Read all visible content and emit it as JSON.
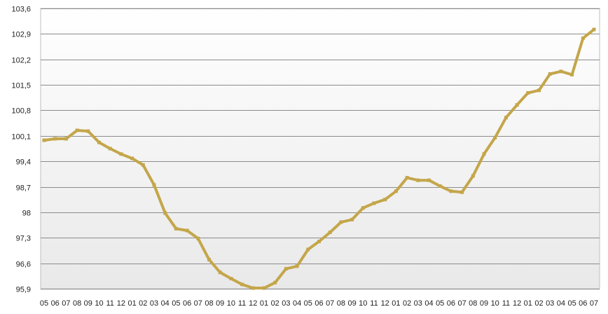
{
  "colors": {
    "line": "#C4A64A",
    "grid": "#8C8C8C",
    "plot_bg_top": "#FFFFFF",
    "plot_bg_bottom": "#E9E9E9",
    "frame": "#BFBFBF",
    "text": "#222222"
  },
  "chart_data": {
    "type": "line",
    "title": "",
    "xlabel": "",
    "ylabel": "",
    "grid": true,
    "legend": "none",
    "ylim": [
      95.9,
      103.6
    ],
    "y_ticks": [
      "103,6",
      "102,9",
      "102,2",
      "101,5",
      "100,8",
      "100,1",
      "99,4",
      "98,7",
      "98",
      "97,3",
      "96,6",
      "95,9"
    ],
    "y_tick_values": [
      103.6,
      102.9,
      102.2,
      101.5,
      100.8,
      100.1,
      99.4,
      98.7,
      98.0,
      97.3,
      96.6,
      95.9
    ],
    "categories": [
      "05",
      "06",
      "07",
      "08",
      "09",
      "10",
      "11",
      "12",
      "01",
      "02",
      "03",
      "04",
      "05",
      "06",
      "07",
      "08",
      "09",
      "10",
      "11",
      "12",
      "01",
      "02",
      "03",
      "04",
      "05",
      "06",
      "07",
      "08",
      "09",
      "10",
      "11",
      "12",
      "01",
      "02",
      "03",
      "04",
      "05",
      "06",
      "07",
      "08",
      "09",
      "10",
      "11",
      "12",
      "01",
      "02",
      "03",
      "04",
      "05",
      "06",
      "07"
    ],
    "series": [
      {
        "values": [
          99.98,
          100.02,
          100.02,
          100.25,
          100.23,
          99.92,
          99.75,
          99.6,
          99.48,
          99.3,
          98.75,
          97.98,
          97.55,
          97.5,
          97.28,
          96.7,
          96.35,
          96.18,
          96.02,
          95.92,
          95.92,
          96.07,
          96.45,
          96.52,
          96.98,
          97.2,
          97.45,
          97.73,
          97.8,
          98.12,
          98.25,
          98.35,
          98.58,
          98.95,
          98.88,
          98.88,
          98.72,
          98.58,
          98.55,
          99.0,
          99.6,
          100.05,
          100.6,
          100.95,
          101.28,
          101.35,
          101.8,
          101.87,
          101.78,
          102.78,
          103.02
        ]
      }
    ]
  }
}
